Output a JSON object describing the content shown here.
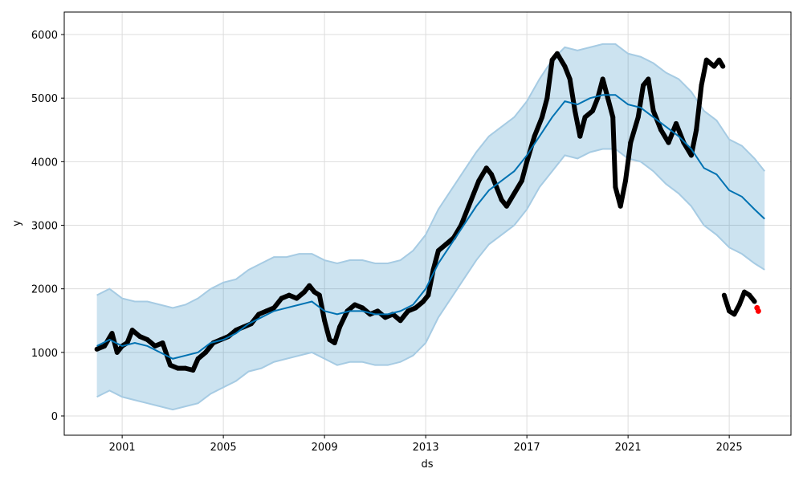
{
  "chart_data": {
    "type": "line",
    "title": "",
    "xlabel": "ds",
    "ylabel": "y",
    "xlim": [
      1998.71,
      2027.44
    ],
    "ylim": [
      -303,
      6354
    ],
    "x_ticks": [
      2001,
      2005,
      2009,
      2013,
      2017,
      2021,
      2025
    ],
    "y_ticks": [
      0,
      1000,
      2000,
      3000,
      4000,
      5000,
      6000
    ],
    "grid": true,
    "colors": {
      "forecast": "#0072B2",
      "band": "#0072B2",
      "actual": "#000000",
      "highlight": "#ff0000"
    },
    "forecast": {
      "x": [
        2000.0,
        2000.5,
        2001.0,
        2001.5,
        2002.0,
        2002.5,
        2003.0,
        2003.5,
        2004.0,
        2004.5,
        2005.0,
        2005.5,
        2006.0,
        2006.5,
        2007.0,
        2007.5,
        2008.0,
        2008.5,
        2009.0,
        2009.5,
        2010.0,
        2010.5,
        2011.0,
        2011.5,
        2012.0,
        2012.5,
        2013.0,
        2013.5,
        2014.0,
        2014.5,
        2015.0,
        2015.5,
        2016.0,
        2016.5,
        2017.0,
        2017.5,
        2018.0,
        2018.5,
        2019.0,
        2019.5,
        2020.0,
        2020.5,
        2021.0,
        2021.5,
        2022.0,
        2022.5,
        2023.0,
        2023.5,
        2024.0,
        2024.5,
        2025.0,
        2025.5,
        2026.0,
        2026.4
      ],
      "yhat": [
        1100,
        1200,
        1100,
        1150,
        1100,
        1000,
        900,
        950,
        1000,
        1150,
        1200,
        1300,
        1450,
        1550,
        1650,
        1700,
        1750,
        1800,
        1650,
        1600,
        1650,
        1650,
        1600,
        1600,
        1650,
        1750,
        2000,
        2400,
        2700,
        3000,
        3300,
        3550,
        3700,
        3850,
        4100,
        4400,
        4700,
        4950,
        4900,
        5000,
        5050,
        5050,
        4900,
        4850,
        4700,
        4550,
        4400,
        4200,
        3900,
        3800,
        3550,
        3450,
        3250,
        3100
      ],
      "upper": [
        1900,
        2000,
        1850,
        1800,
        1800,
        1750,
        1700,
        1750,
        1850,
        2000,
        2100,
        2150,
        2300,
        2400,
        2500,
        2500,
        2550,
        2550,
        2450,
        2400,
        2450,
        2450,
        2400,
        2400,
        2450,
        2600,
        2850,
        3250,
        3550,
        3850,
        4150,
        4400,
        4550,
        4700,
        4950,
        5300,
        5600,
        5800,
        5750,
        5800,
        5850,
        5850,
        5700,
        5650,
        5550,
        5400,
        5300,
        5100,
        4800,
        4650,
        4350,
        4250,
        4050,
        3850
      ],
      "lower": [
        300,
        400,
        300,
        250,
        200,
        150,
        100,
        150,
        200,
        350,
        450,
        550,
        700,
        750,
        850,
        900,
        950,
        1000,
        900,
        800,
        850,
        850,
        800,
        800,
        850,
        950,
        1150,
        1550,
        1850,
        2150,
        2450,
        2700,
        2850,
        3000,
        3250,
        3600,
        3850,
        4100,
        4050,
        4150,
        4200,
        4200,
        4050,
        4000,
        3850,
        3650,
        3500,
        3300,
        3000,
        2850,
        2650,
        2550,
        2400,
        2300
      ]
    },
    "actual": {
      "x": [
        2000.0,
        2000.3,
        2000.6,
        2000.8,
        2001.0,
        2001.2,
        2001.4,
        2001.7,
        2002.0,
        2002.3,
        2002.6,
        2002.9,
        2003.2,
        2003.5,
        2003.8,
        2004.0,
        2004.3,
        2004.6,
        2004.9,
        2005.2,
        2005.5,
        2005.8,
        2006.1,
        2006.4,
        2006.7,
        2007.0,
        2007.3,
        2007.6,
        2007.9,
        2008.2,
        2008.4,
        2008.6,
        2008.8,
        2009.0,
        2009.2,
        2009.4,
        2009.6,
        2009.9,
        2010.2,
        2010.5,
        2010.8,
        2011.1,
        2011.4,
        2011.7,
        2012.0,
        2012.3,
        2012.6,
        2012.9,
        2013.1,
        2013.3,
        2013.5,
        2013.8,
        2014.1,
        2014.4,
        2014.7,
        2014.9,
        2015.1,
        2015.4,
        2015.6,
        2015.8,
        2016.0,
        2016.2,
        2016.5,
        2016.8,
        2017.0,
        2017.3,
        2017.6,
        2017.8,
        2018.0,
        2018.2,
        2018.5,
        2018.7,
        2018.9,
        2019.1,
        2019.3,
        2019.6,
        2019.8,
        2020.0,
        2020.2,
        2020.4,
        2020.5,
        2020.7,
        2020.9,
        2021.1,
        2021.4,
        2021.6,
        2021.8,
        2022.0,
        2022.3,
        2022.6,
        2022.9,
        2023.2,
        2023.5,
        2023.7,
        2023.9,
        2024.1,
        2024.4,
        2024.6,
        2024.75,
        2024.8,
        2025.0,
        2025.2,
        2025.4,
        2025.6,
        2025.8,
        2026.0
      ],
      "y": [
        1050,
        1100,
        1300,
        1000,
        1100,
        1150,
        1350,
        1250,
        1200,
        1100,
        1150,
        800,
        750,
        750,
        720,
        900,
        1000,
        1150,
        1200,
        1250,
        1350,
        1400,
        1450,
        1600,
        1650,
        1700,
        1850,
        1900,
        1850,
        1950,
        2050,
        1950,
        1900,
        1500,
        1200,
        1150,
        1400,
        1650,
        1750,
        1700,
        1600,
        1650,
        1550,
        1600,
        1500,
        1650,
        1700,
        1800,
        1900,
        2300,
        2600,
        2700,
        2800,
        3000,
        3300,
        3500,
        3700,
        3900,
        3800,
        3600,
        3400,
        3300,
        3500,
        3700,
        4000,
        4400,
        4700,
        5000,
        5600,
        5700,
        5500,
        5300,
        4800,
        4400,
        4700,
        4800,
        5000,
        5300,
        5000,
        4700,
        3600,
        3300,
        3700,
        4300,
        4700,
        5200,
        5300,
        4800,
        4500,
        4300,
        4600,
        4300,
        4100,
        4500,
        5200,
        5600,
        5500,
        5600,
        5500,
        1900,
        1650,
        1600,
        1750,
        1950,
        1900,
        1800
      ]
    },
    "highlight": {
      "x": [
        2026.1,
        2026.15
      ],
      "y": [
        1700,
        1650
      ]
    }
  }
}
